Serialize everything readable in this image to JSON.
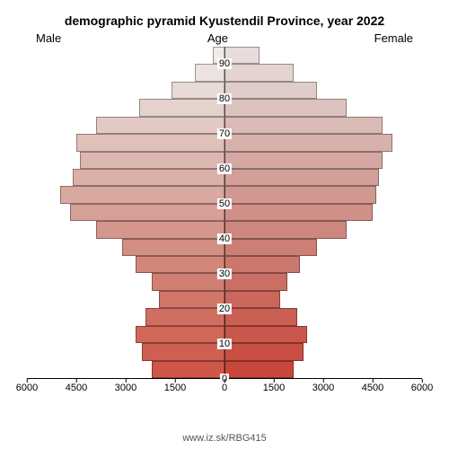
{
  "title": "demographic pyramid Kyustendil Province, year 2022",
  "title_fontsize": 14,
  "axis_labels": {
    "left": "Male",
    "center": "Age",
    "right": "Female"
  },
  "axis_label_fontsize": 13,
  "footer_text": "www.iz.sk/RBG415",
  "footer_fontsize": 11,
  "background_color": "#ffffff",
  "bar_border_color": "rgba(0,0,0,0.35)",
  "chart": {
    "type": "population-pyramid",
    "x_max": 6000,
    "x_ticks_left": [
      6000,
      4500,
      3000,
      1500,
      0
    ],
    "x_ticks_right": [
      0,
      1500,
      3000,
      4500,
      6000
    ],
    "x_tick_fontsize": 11,
    "age_tick_labels": [
      90,
      80,
      70,
      60,
      50,
      40,
      30,
      20,
      10,
      0
    ],
    "age_tick_fontsize": 11,
    "bars": [
      {
        "age_lo": 90,
        "male": 350,
        "female": 1050,
        "color_male": "#f0ebe9",
        "color_female": "#e9dddb"
      },
      {
        "age_lo": 85,
        "male": 900,
        "female": 2100,
        "color_male": "#ece3e0",
        "color_female": "#e4d4d1"
      },
      {
        "age_lo": 80,
        "male": 1600,
        "female": 2800,
        "color_male": "#e8dad6",
        "color_female": "#e0ccc8"
      },
      {
        "age_lo": 75,
        "male": 2600,
        "female": 3700,
        "color_male": "#e5d2cd",
        "color_female": "#ddc3bf"
      },
      {
        "age_lo": 70,
        "male": 3900,
        "female": 4800,
        "color_male": "#e2c9c4",
        "color_female": "#dabab5"
      },
      {
        "age_lo": 65,
        "male": 4500,
        "female": 5100,
        "color_male": "#dfc1ba",
        "color_female": "#d7b1ab"
      },
      {
        "age_lo": 60,
        "male": 4400,
        "female": 4800,
        "color_male": "#ddb8b1",
        "color_female": "#d5a9a2"
      },
      {
        "age_lo": 55,
        "male": 4600,
        "female": 4700,
        "color_male": "#dbb0a8",
        "color_female": "#d3a099"
      },
      {
        "age_lo": 50,
        "male": 5000,
        "female": 4600,
        "color_male": "#d9a89f",
        "color_female": "#d19890"
      },
      {
        "age_lo": 45,
        "male": 4700,
        "female": 4500,
        "color_male": "#d7a096",
        "color_female": "#d09088"
      },
      {
        "age_lo": 40,
        "male": 3900,
        "female": 3700,
        "color_male": "#d5978d",
        "color_female": "#ce877f"
      },
      {
        "age_lo": 35,
        "male": 3100,
        "female": 2800,
        "color_male": "#d48f84",
        "color_female": "#cd7f76"
      },
      {
        "age_lo": 30,
        "male": 2700,
        "female": 2300,
        "color_male": "#d3877b",
        "color_female": "#cc776d"
      },
      {
        "age_lo": 25,
        "male": 2200,
        "female": 1900,
        "color_male": "#d27f73",
        "color_female": "#cb6f65"
      },
      {
        "age_lo": 20,
        "male": 2000,
        "female": 1700,
        "color_male": "#d1776a",
        "color_female": "#cb675c"
      },
      {
        "age_lo": 15,
        "male": 2400,
        "female": 2200,
        "color_male": "#d06f61",
        "color_female": "#ca5f54"
      },
      {
        "age_lo": 10,
        "male": 2700,
        "female": 2500,
        "color_male": "#d06759",
        "color_female": "#ca574b"
      },
      {
        "age_lo": 5,
        "male": 2500,
        "female": 2400,
        "color_male": "#cf5f50",
        "color_female": "#c94f43"
      },
      {
        "age_lo": 0,
        "male": 2200,
        "female": 2100,
        "color_male": "#cf5748",
        "color_female": "#c9473a"
      }
    ]
  }
}
